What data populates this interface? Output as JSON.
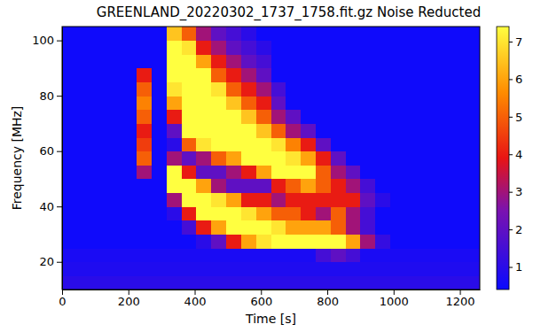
{
  "chart_data": {
    "type": "heatmap",
    "title": "GREENLAND_20220302_1737_1758.fit.gz Noise Reducted",
    "x_label": "Time [s]",
    "y_label": "Frequency [MHz]",
    "x": [
      0,
      45,
      90,
      135,
      180,
      225,
      270,
      315,
      360,
      405,
      450,
      495,
      540,
      585,
      630,
      675,
      720,
      765,
      810,
      855,
      900,
      945,
      990,
      1035,
      1080,
      1125,
      1170,
      1215
    ],
    "y": [
      10,
      15,
      20,
      25,
      30,
      35,
      40,
      45,
      50,
      55,
      60,
      65,
      70,
      75,
      80,
      85,
      90,
      95,
      100
    ],
    "z": [
      [
        1,
        1,
        1,
        1,
        1,
        1,
        1,
        1,
        1,
        1,
        1,
        1,
        1,
        1,
        1,
        1,
        1,
        1,
        1,
        1,
        1,
        1,
        1,
        1,
        1,
        1,
        1,
        1
      ],
      [
        0.8,
        0.8,
        0.8,
        0.8,
        0.8,
        0.8,
        0.8,
        0.8,
        0.8,
        0.8,
        0.8,
        0.8,
        0.8,
        0.8,
        0.8,
        0.8,
        0.8,
        0.8,
        0.8,
        0.8,
        0.8,
        0.8,
        0.8,
        0.8,
        0.8,
        0.8,
        0.8,
        0.8
      ],
      [
        0.7,
        0.7,
        0.7,
        0.7,
        0.7,
        0.7,
        0.7,
        0.7,
        0.7,
        0.7,
        0.7,
        0.7,
        0.7,
        0.7,
        0.7,
        0.7,
        0.7,
        1.5,
        2,
        1.5,
        0.7,
        0.7,
        0.7,
        0.7,
        0.7,
        0.7,
        0.7,
        0.7
      ],
      [
        0.5,
        0.5,
        0.5,
        0.5,
        0.5,
        0.5,
        0.5,
        0.5,
        0.5,
        1,
        2,
        4,
        6,
        7,
        7.4,
        7.4,
        7.4,
        7.4,
        7.4,
        6,
        3,
        1.2,
        0.5,
        0.5,
        0.5,
        0.5,
        0.5,
        0.5
      ],
      [
        0.5,
        0.5,
        0.5,
        0.5,
        0.5,
        0.5,
        0.5,
        0.5,
        1.5,
        4,
        6,
        7.4,
        7.4,
        7.4,
        7,
        6,
        6,
        6,
        5,
        3,
        1.5,
        0.5,
        0.5,
        0.5,
        0.5,
        0.5,
        0.5,
        0.5
      ],
      [
        0.5,
        0.5,
        0.5,
        0.5,
        0.5,
        0.5,
        0.5,
        1,
        4,
        7.4,
        7.4,
        7.4,
        7,
        6,
        5,
        5,
        4,
        3,
        5,
        3,
        1.5,
        0.5,
        0.5,
        0.5,
        0.5,
        0.5,
        0.5,
        0.5
      ],
      [
        0.5,
        0.5,
        0.5,
        0.5,
        0.5,
        0.5,
        0.5,
        3,
        7.4,
        7.4,
        7,
        6,
        4,
        4,
        3,
        4,
        4,
        4,
        4,
        4,
        2,
        1,
        0.5,
        0.5,
        0.5,
        0.5,
        0.5,
        0.5
      ],
      [
        0.5,
        0.5,
        0.5,
        0.5,
        0.5,
        0.5,
        0.5,
        7.4,
        7.4,
        6,
        3,
        2,
        2,
        2,
        4,
        5,
        6,
        5,
        4,
        3,
        1.5,
        0.5,
        0.5,
        0.5,
        0.5,
        0.5,
        0.5,
        0.5
      ],
      [
        0.5,
        0.5,
        0.5,
        0.5,
        0.5,
        3,
        0.5,
        7.4,
        4,
        2,
        2,
        3,
        4,
        6,
        7.4,
        7.4,
        7.4,
        5,
        3,
        2,
        0.5,
        0.5,
        0.5,
        0.5,
        0.5,
        0.5,
        0.5,
        0.5
      ],
      [
        0.5,
        0.5,
        0.5,
        0.5,
        0.5,
        5,
        0.5,
        3,
        2,
        3,
        5,
        6,
        7.4,
        7.4,
        7.4,
        7,
        6,
        4,
        2,
        0.5,
        0.5,
        0.5,
        0.5,
        0.5,
        0.5,
        0.5,
        0.5,
        0.5
      ],
      [
        0.5,
        0.5,
        0.5,
        0.5,
        0.5,
        4.5,
        0.5,
        1,
        5,
        7,
        7.4,
        7.4,
        7.4,
        7.4,
        7,
        5.5,
        4,
        2,
        0.5,
        0.5,
        0.5,
        0.5,
        0.5,
        0.5,
        0.5,
        0.5,
        0.5,
        0.5
      ],
      [
        0.5,
        0.5,
        0.5,
        0.5,
        0.5,
        4,
        0.5,
        2,
        7.4,
        7.4,
        7.4,
        7.4,
        7.4,
        6.5,
        5,
        3,
        2,
        0.5,
        0.5,
        0.5,
        0.5,
        0.5,
        0.5,
        0.5,
        0.5,
        0.5,
        0.5,
        0.5
      ],
      [
        0.5,
        0.5,
        0.5,
        0.5,
        0.5,
        5,
        0.5,
        4,
        7.4,
        7.4,
        7.4,
        7.4,
        6.5,
        5,
        3,
        2,
        0.5,
        0.5,
        0.5,
        0.5,
        0.5,
        0.5,
        0.5,
        0.5,
        0.5,
        0.5,
        0.5,
        0.5
      ],
      [
        0.5,
        0.5,
        0.5,
        0.5,
        0.5,
        5.5,
        0.5,
        6,
        7.4,
        7.4,
        7.4,
        6.5,
        5,
        4,
        2,
        0.5,
        0.5,
        0.5,
        0.5,
        0.5,
        0.5,
        0.5,
        0.5,
        0.5,
        0.5,
        0.5,
        0.5,
        0.5
      ],
      [
        0.5,
        0.5,
        0.5,
        0.5,
        0.5,
        5,
        0.5,
        7,
        7.4,
        7.4,
        7,
        5,
        4,
        3,
        1.5,
        0.5,
        0.5,
        0.5,
        0.5,
        0.5,
        0.5,
        0.5,
        0.5,
        0.5,
        0.5,
        0.5,
        0.5,
        0.5
      ],
      [
        0.5,
        0.5,
        0.5,
        0.5,
        0.5,
        4,
        0.5,
        7.4,
        7.4,
        7.4,
        5,
        4,
        3,
        2,
        0.5,
        0.5,
        0.5,
        0.5,
        0.5,
        0.5,
        0.5,
        0.5,
        0.5,
        0.5,
        0.5,
        0.5,
        0.5,
        0.5
      ],
      [
        0.5,
        0.5,
        0.5,
        0.5,
        0.5,
        0.5,
        0.5,
        7.4,
        7.4,
        6,
        4,
        3,
        2,
        1.5,
        0.5,
        0.5,
        0.5,
        0.5,
        0.5,
        0.5,
        0.5,
        0.5,
        0.5,
        0.5,
        0.5,
        0.5,
        0.5,
        0.5
      ],
      [
        0.5,
        0.5,
        0.5,
        0.5,
        0.5,
        0.5,
        0.5,
        7.4,
        7,
        4,
        3,
        2,
        1.5,
        1,
        0.5,
        0.5,
        0.5,
        0.5,
        0.5,
        0.5,
        0.5,
        0.5,
        0.5,
        0.5,
        0.5,
        0.5,
        0.5,
        0.5
      ],
      [
        0.5,
        0.5,
        0.5,
        0.5,
        0.5,
        0.5,
        0.5,
        6.5,
        5,
        3,
        2,
        1.5,
        1,
        0.5,
        0.5,
        0.5,
        0.5,
        0.5,
        0.5,
        0.5,
        0.5,
        0.5,
        0.5,
        0.5,
        0.5,
        0.5,
        0.5,
        0.5
      ]
    ],
    "xlim": [
      0,
      1260
    ],
    "ylim": [
      10,
      105
    ],
    "xticks": [
      0,
      200,
      400,
      600,
      800,
      1000,
      1200
    ],
    "yticks": [
      20,
      40,
      60,
      80,
      100
    ],
    "colorbar": {
      "range": [
        0.4,
        7.4
      ],
      "ticks": [
        1,
        2,
        3,
        4,
        5,
        6,
        7
      ]
    }
  }
}
